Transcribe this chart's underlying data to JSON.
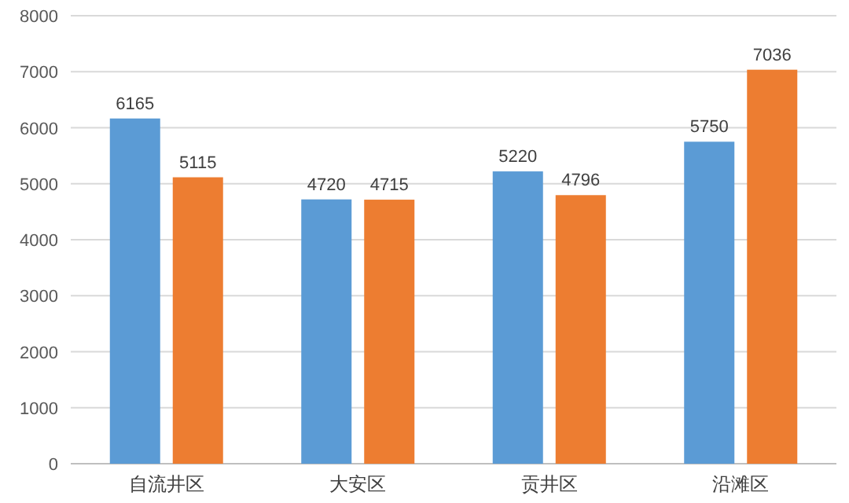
{
  "chart_data": {
    "type": "bar",
    "categories": [
      "自流井区",
      "大安区",
      "贡井区",
      "沿滩区"
    ],
    "series": [
      {
        "color": "#5b9bd5",
        "values": [
          6165,
          4720,
          5220,
          5750
        ]
      },
      {
        "color": "#ed7d31",
        "values": [
          5115,
          4715,
          4796,
          7036
        ]
      }
    ],
    "ylim": [
      0,
      8000
    ],
    "yticks": [
      0,
      1000,
      2000,
      3000,
      4000,
      5000,
      6000,
      7000,
      8000
    ],
    "grid": "y",
    "data_labels": true
  }
}
